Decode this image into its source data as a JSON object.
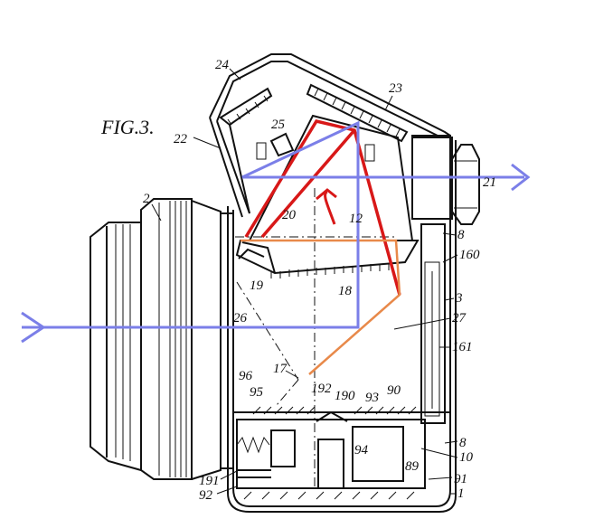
{
  "figure": {
    "title": "FIG.3."
  },
  "labels": [
    "24",
    "23",
    "25",
    "22",
    "2",
    "20",
    "12",
    "21",
    "8",
    "160",
    "3",
    "19",
    "18",
    "26",
    "27",
    "161",
    "17",
    "96",
    "95",
    "192",
    "190",
    "93",
    "90",
    "94",
    "8",
    "10",
    "89",
    "191",
    "91",
    "92",
    "1"
  ],
  "colors": {
    "optical_axis": "#7b7fe8",
    "red_path": "#d81818",
    "orange_path": "#e8894a",
    "ink": "#111111"
  },
  "icons": {
    "rotation_arrow": "curved-arrow-icon",
    "ray_arrowheads": "arrowhead-icon"
  }
}
